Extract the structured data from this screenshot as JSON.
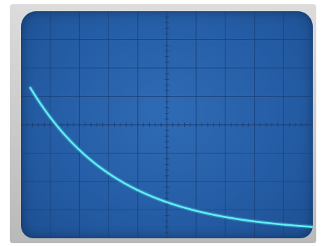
{
  "scene": {
    "subject": "oscilloscope-screen",
    "screen_color": "#255EA6",
    "grid_color": "#1A3F75",
    "trace_color": "#5FF0F4"
  },
  "graticule": {
    "divisions_x": 10,
    "divisions_y": 8
  },
  "trace": {
    "shape": "exponential-decay",
    "start_level_div": 5.3,
    "end_level_div": 0.2,
    "decay_constant_div": 3.0
  }
}
